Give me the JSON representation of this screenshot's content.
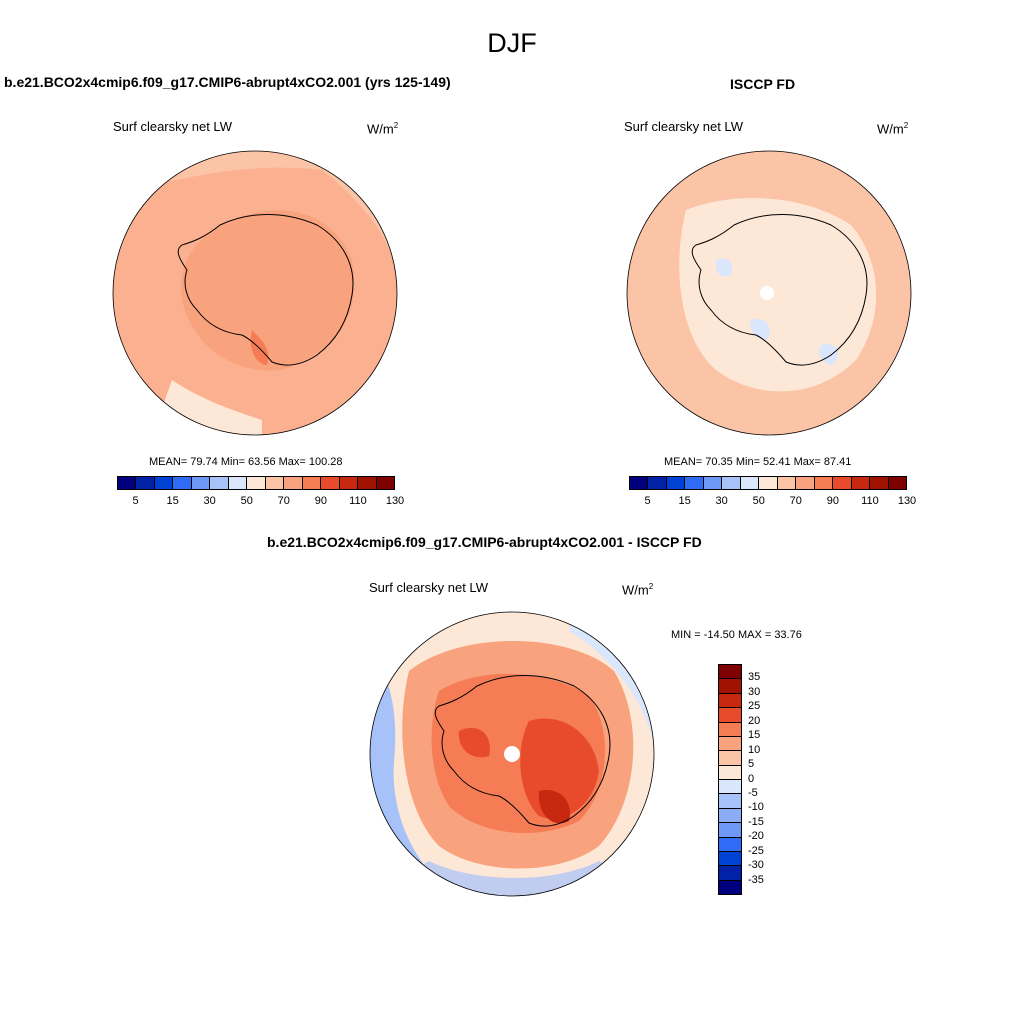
{
  "season": "DJF",
  "colors": {
    "abs_scale": [
      "#00007f",
      "#0021a8",
      "#0042d6",
      "#2f6bf5",
      "#6f99f7",
      "#a7c2f8",
      "#dae6fb",
      "#fde8d8",
      "#fcc4a6",
      "#f9a27e",
      "#f57c55",
      "#e84a2c",
      "#c7280f",
      "#a11200",
      "#7f0000"
    ],
    "diff_scale": [
      "#7f0000",
      "#a11200",
      "#c7280f",
      "#e84a2c",
      "#f57c55",
      "#f9a27e",
      "#fcc4a6",
      "#fde8d8",
      "#dae6fb",
      "#a7c2f8",
      "#8bacf6",
      "#6f99f7",
      "#2f6bf5",
      "#0042d6",
      "#0021a8",
      "#00007f"
    ]
  },
  "panels": {
    "model": {
      "title": "b.e21.BCO2x4cmip6.f09_g17.CMIP6-abrupt4xCO2.001 (yrs 125-149)",
      "subtitle": "Surf clearsky net LW",
      "units_base": "W/m",
      "units_exp": "2",
      "stats": "MEAN=  79.74  Min=  63.56  Max= 100.28",
      "ticks": [
        "5",
        "15",
        "30",
        "50",
        "70",
        "90",
        "110",
        "130"
      ]
    },
    "obs": {
      "title": "ISCCP FD",
      "subtitle": "Surf clearsky net LW",
      "units_base": "W/m",
      "units_exp": "2",
      "stats": "MEAN=  70.35  Min=  52.41  Max=  87.41",
      "ticks": [
        "5",
        "15",
        "30",
        "50",
        "70",
        "90",
        "110",
        "130"
      ]
    },
    "diff": {
      "title": "b.e21.BCO2x4cmip6.f09_g17.CMIP6-abrupt4xCO2.001 - ISCCP FD",
      "subtitle": "Surf clearsky net LW",
      "units_base": "W/m",
      "units_exp": "2",
      "stats": "MIN = -14.50 MAX =  33.76",
      "ticks": [
        "35",
        "30",
        "25",
        "20",
        "15",
        "10",
        "5",
        "0",
        "-5",
        "-10",
        "-15",
        "-20",
        "-25",
        "-30",
        "-35"
      ]
    }
  }
}
